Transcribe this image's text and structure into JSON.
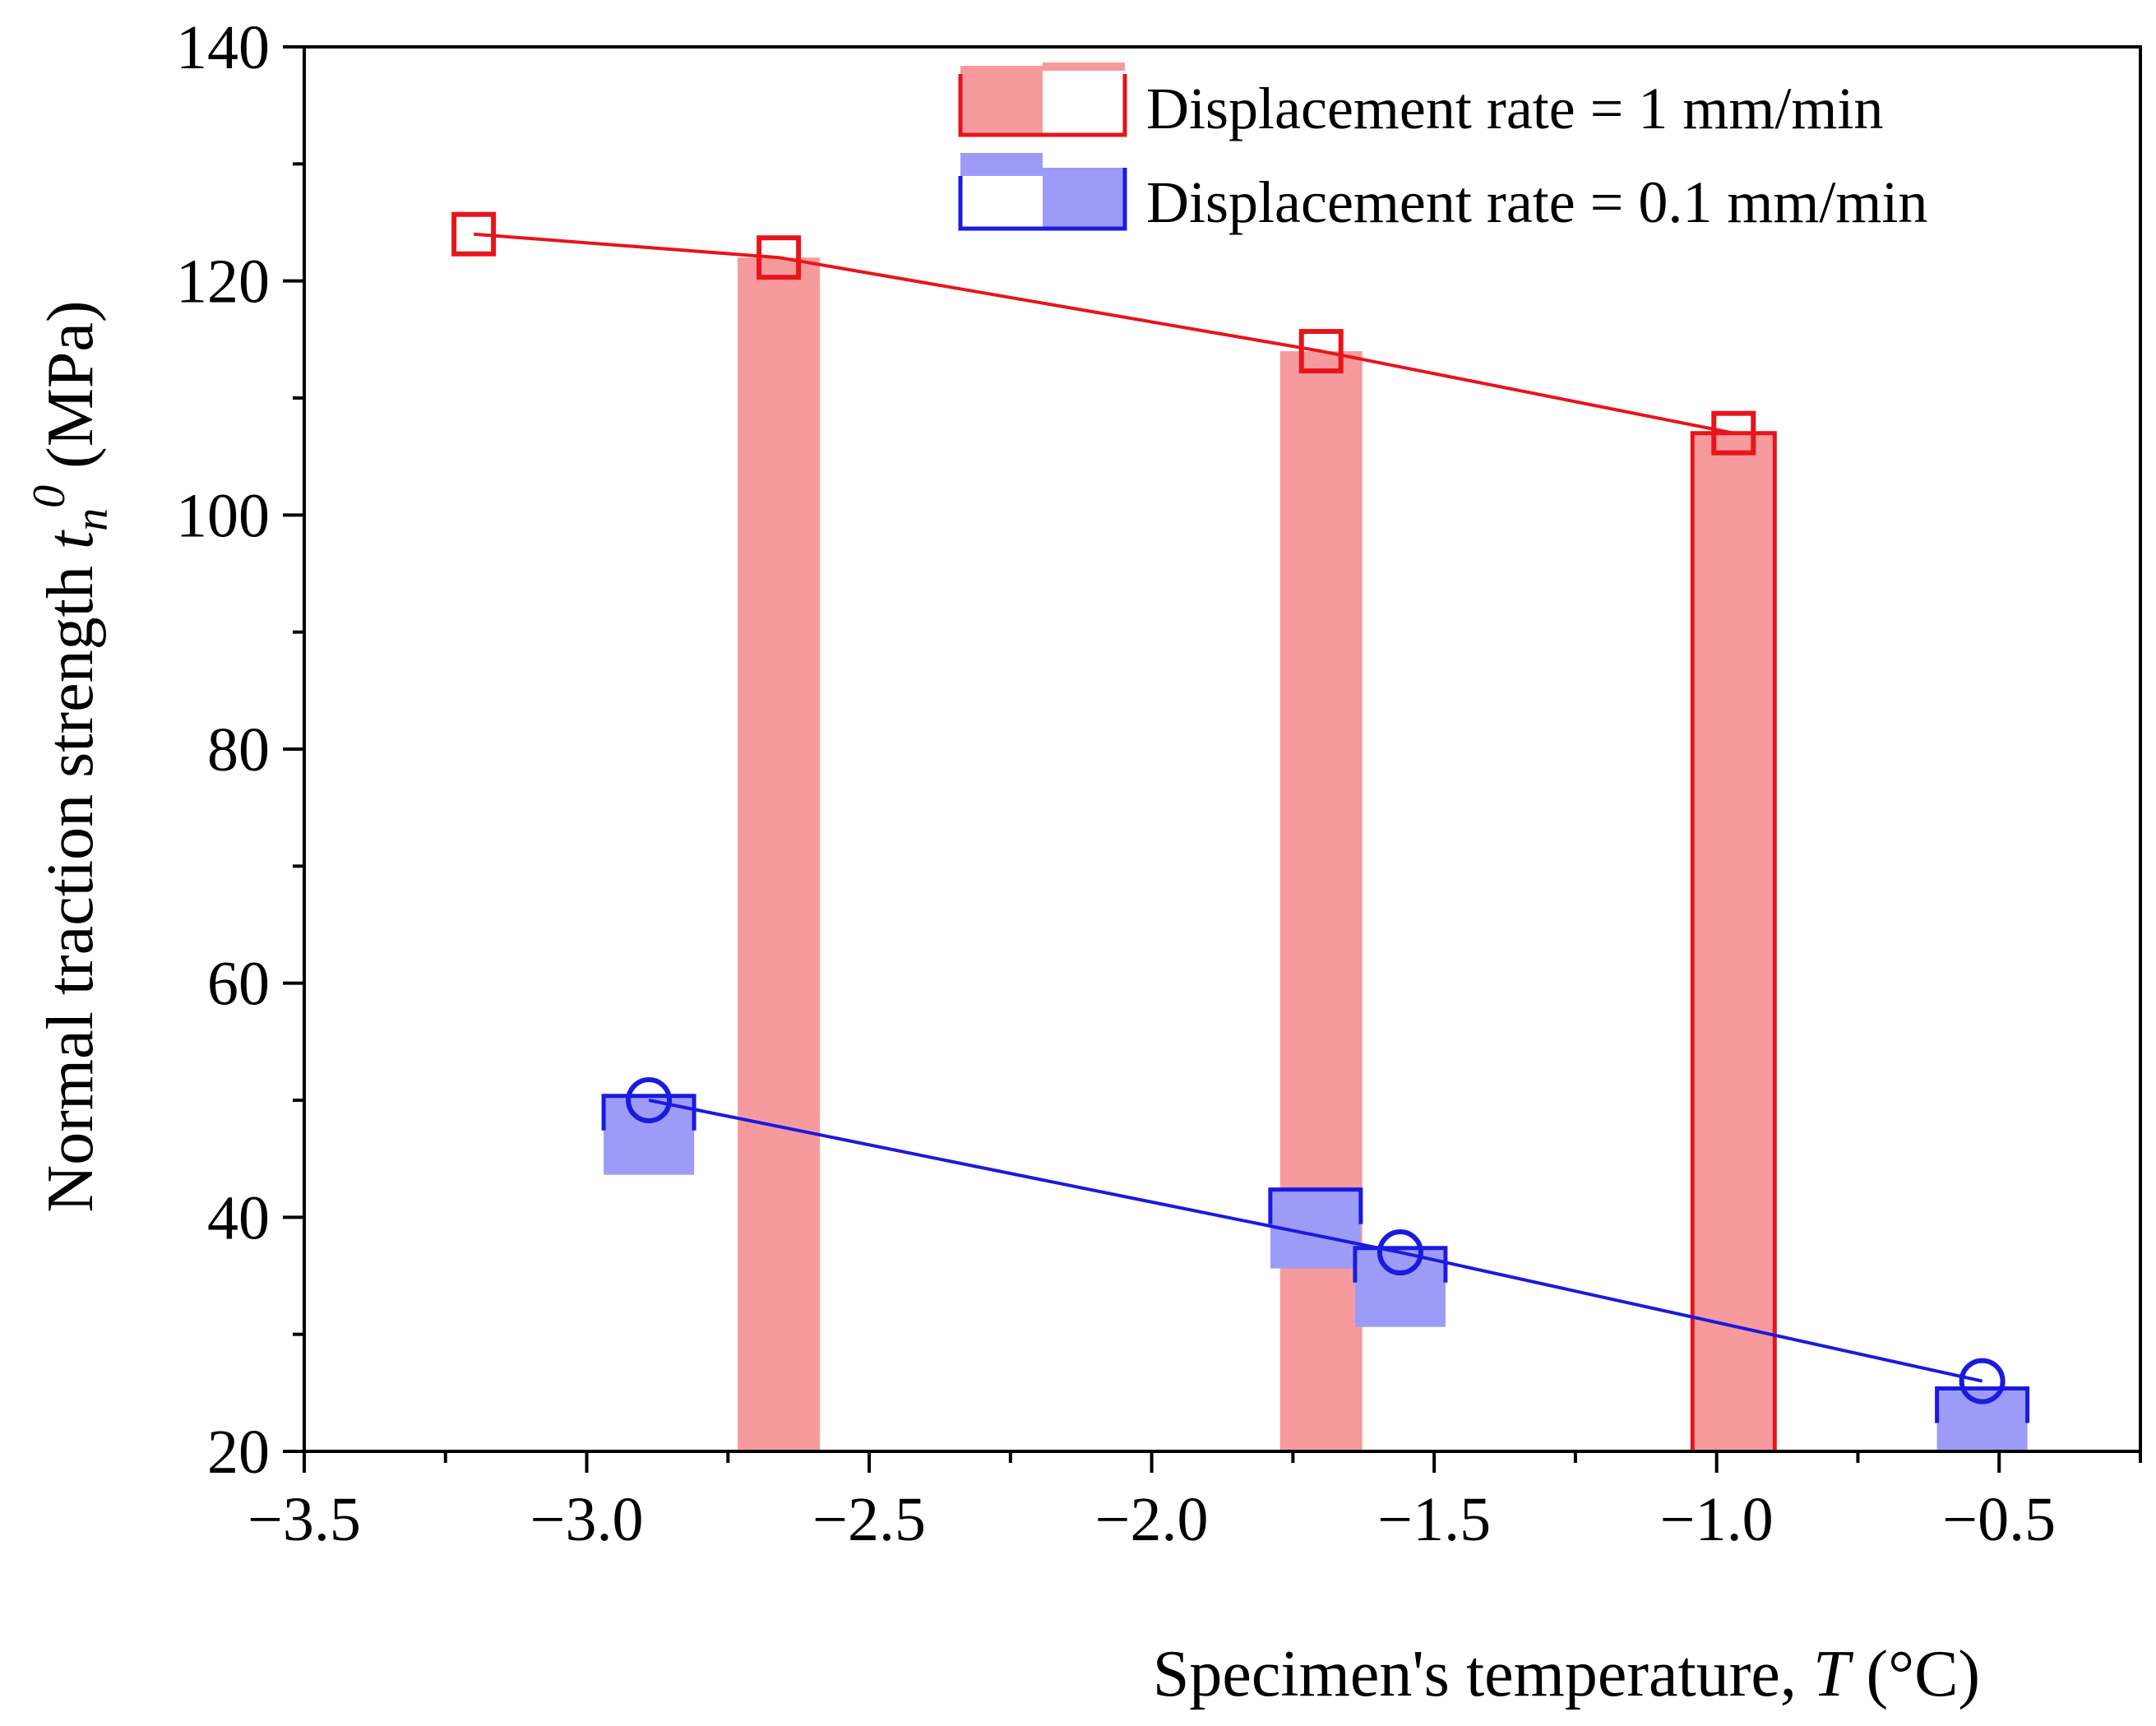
{
  "chart_data": {
    "type": "line",
    "title": "",
    "xlabel": "Specimen's temperature, T (°C)",
    "xlabel_parts": {
      "pre": "Specimen's temperature, ",
      "var": "T",
      "post": " (°C)"
    },
    "ylabel": "Normal traction strength t_n^0 (MPa)",
    "ylabel_parts": {
      "pre": "Normal traction strength ",
      "var": "t",
      "sub": "n",
      "sup": "0",
      "post": " (MPa)"
    },
    "xlim": [
      -3.5,
      -0.25
    ],
    "ylim": [
      20,
      140
    ],
    "xticks": [
      -3.5,
      -3.0,
      -2.5,
      -2.0,
      -1.5,
      -1.0,
      -0.5
    ],
    "xtick_labels": [
      "−3.5",
      "−3.0",
      "−2.5",
      "−2.0",
      "−1.5",
      "−1.0",
      "−0.5"
    ],
    "yticks": [
      20,
      40,
      60,
      80,
      100,
      120,
      140
    ],
    "ytick_labels": [
      "20",
      "40",
      "60",
      "80",
      "100",
      "120",
      "140"
    ],
    "legend_position": "top-right",
    "series": [
      {
        "name": "Displacement rate = 1 mm/min",
        "color": "#e8141b",
        "fill": "#f79a9d",
        "marker": "square",
        "x": [
          -3.2,
          -2.66,
          -1.7,
          -0.97
        ],
        "y": [
          124,
          122,
          114,
          107
        ]
      },
      {
        "name": "Displacement rate = 0.1 mm/min",
        "color": "#1a1ae0",
        "fill": "#9c9cf8",
        "marker": "circle",
        "x": [
          -2.89,
          -1.56,
          -0.53
        ],
        "y": [
          50,
          37,
          26
        ]
      }
    ],
    "bars": [
      {
        "x": -2.66,
        "y": 122,
        "series": "Displacement rate = 1 mm/min"
      },
      {
        "x": -1.7,
        "y": 114,
        "series": "Displacement rate = 1 mm/min"
      },
      {
        "x": -0.97,
        "y": 107,
        "series": "Displacement rate = 1 mm/min"
      }
    ],
    "boxes": [
      {
        "x": -2.89,
        "y": 47,
        "series": "Displacement rate = 0.1 mm/min"
      },
      {
        "x": -1.71,
        "y": 39,
        "series": "Displacement rate = 0.1 mm/min"
      },
      {
        "x": -1.56,
        "y": 34,
        "series": "Displacement rate = 0.1 mm/min"
      },
      {
        "x": -0.53,
        "y": 22,
        "series": "Displacement rate = 0.1 mm/min"
      }
    ]
  }
}
